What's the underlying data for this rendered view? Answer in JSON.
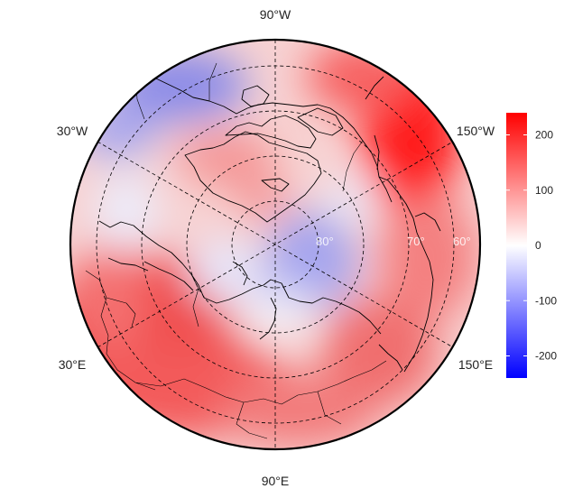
{
  "map": {
    "projection": "north-polar-stereographic",
    "meridian_labels": [
      "90°W",
      "30°W",
      "150°W",
      "30°E",
      "150°E",
      "90°E"
    ],
    "parallel_labels": [
      "80°",
      "70°",
      "60°"
    ],
    "palette": {
      "low": "#0000ff",
      "mid": "#ffffff",
      "high": "#ff0000"
    }
  },
  "colorbar": {
    "ticks": [
      "200",
      "100",
      "0",
      "-100",
      "-200"
    ],
    "range": [
      -240,
      240
    ]
  }
}
